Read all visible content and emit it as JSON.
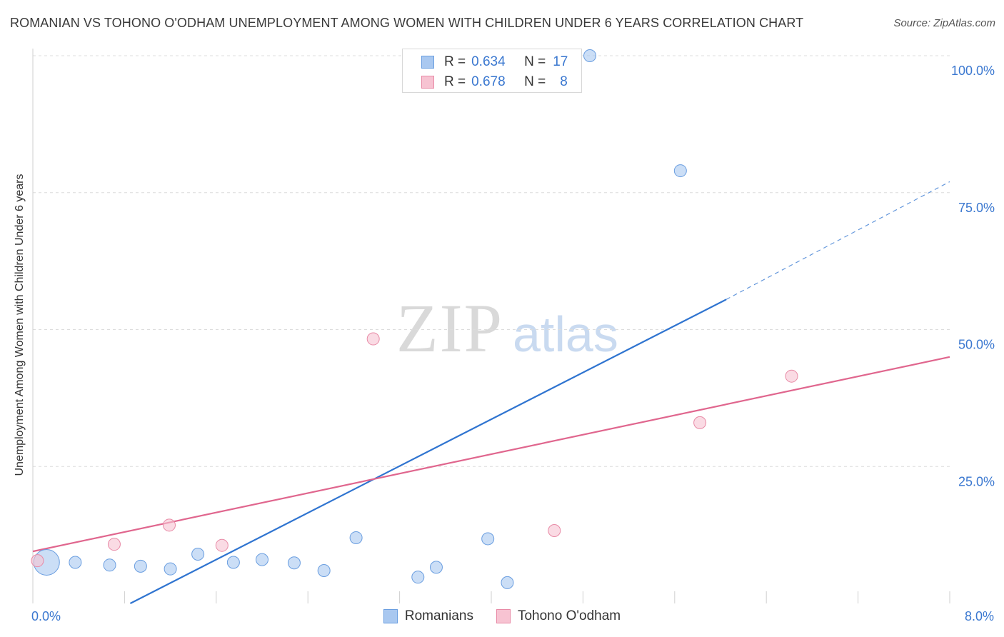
{
  "title": "ROMANIAN VS TOHONO O'ODHAM UNEMPLOYMENT AMONG WOMEN WITH CHILDREN UNDER 6 YEARS CORRELATION CHART",
  "source": "Source: ZipAtlas.com",
  "watermark": {
    "zip": "ZIP",
    "atlas": "atlas"
  },
  "legend_top": [
    {
      "r_label": "R =",
      "r": "0.634",
      "n_label": "N =",
      "n": "17",
      "color": "#a9c8f0",
      "border": "#6a9ee0"
    },
    {
      "r_label": "R =",
      "r": "0.678",
      "n_label": "N =",
      "n": "8",
      "color": "#f7c3d2",
      "border": "#e88aa6"
    }
  ],
  "legend_bottom": [
    {
      "label": "Romanians",
      "color": "#a9c8f0",
      "border": "#6a9ee0"
    },
    {
      "label": "Tohono O'odham",
      "color": "#f7c3d2",
      "border": "#e88aa6"
    }
  ],
  "chart_data": {
    "type": "scatter",
    "title": "ROMANIAN VS TOHONO O'ODHAM UNEMPLOYMENT AMONG WOMEN WITH CHILDREN UNDER 6 YEARS CORRELATION CHART",
    "xlabel": "",
    "ylabel": "Unemployment Among Women with Children Under 6 years",
    "xlim": [
      0,
      8
    ],
    "ylim": [
      0,
      100
    ],
    "x_tick_labels": [
      {
        "value": 0,
        "label": "0.0%"
      },
      {
        "value": 8,
        "label": "8.0%"
      }
    ],
    "y_tick_labels": [
      {
        "value": 25,
        "label": "25.0%"
      },
      {
        "value": 50,
        "label": "50.0%"
      },
      {
        "value": 75,
        "label": "75.0%"
      },
      {
        "value": 100,
        "label": "100.0%"
      }
    ],
    "series": [
      {
        "name": "Romanians",
        "color": "#a9c8f0",
        "stroke": "#6a9ee0",
        "line_color": "#2f74d0",
        "points": [
          {
            "x": 0.12,
            "y": 7.5,
            "size": "large"
          },
          {
            "x": 0.37,
            "y": 7.5
          },
          {
            "x": 0.67,
            "y": 7.0
          },
          {
            "x": 0.94,
            "y": 6.8
          },
          {
            "x": 1.2,
            "y": 6.3
          },
          {
            "x": 1.44,
            "y": 9.0
          },
          {
            "x": 1.75,
            "y": 7.5
          },
          {
            "x": 2.0,
            "y": 8.0
          },
          {
            "x": 2.28,
            "y": 7.4
          },
          {
            "x": 2.54,
            "y": 6.0
          },
          {
            "x": 2.82,
            "y": 12.0
          },
          {
            "x": 3.36,
            "y": 4.8
          },
          {
            "x": 3.52,
            "y": 6.6
          },
          {
            "x": 3.97,
            "y": 11.8
          },
          {
            "x": 4.14,
            "y": 3.8
          },
          {
            "x": 4.86,
            "y": 100.0
          },
          {
            "x": 5.65,
            "y": 79.0
          }
        ],
        "trend": {
          "x0": 0.85,
          "y0": 0.0,
          "x1": 6.05,
          "y1": 55.5,
          "dash_to_x": 8.0,
          "dash_to_y": 77.0
        }
      },
      {
        "name": "Tohono O'odham",
        "color": "#f7c3d2",
        "stroke": "#e88aa6",
        "line_color": "#e0668e",
        "points": [
          {
            "x": 0.04,
            "y": 7.8
          },
          {
            "x": 0.71,
            "y": 10.8
          },
          {
            "x": 1.19,
            "y": 14.3
          },
          {
            "x": 1.65,
            "y": 10.6
          },
          {
            "x": 2.97,
            "y": 48.3
          },
          {
            "x": 4.55,
            "y": 13.3
          },
          {
            "x": 5.82,
            "y": 33.0
          },
          {
            "x": 6.62,
            "y": 41.5
          }
        ],
        "trend": {
          "x0": 0.0,
          "y0": 9.5,
          "x1": 8.0,
          "y1": 45.0
        }
      }
    ]
  }
}
